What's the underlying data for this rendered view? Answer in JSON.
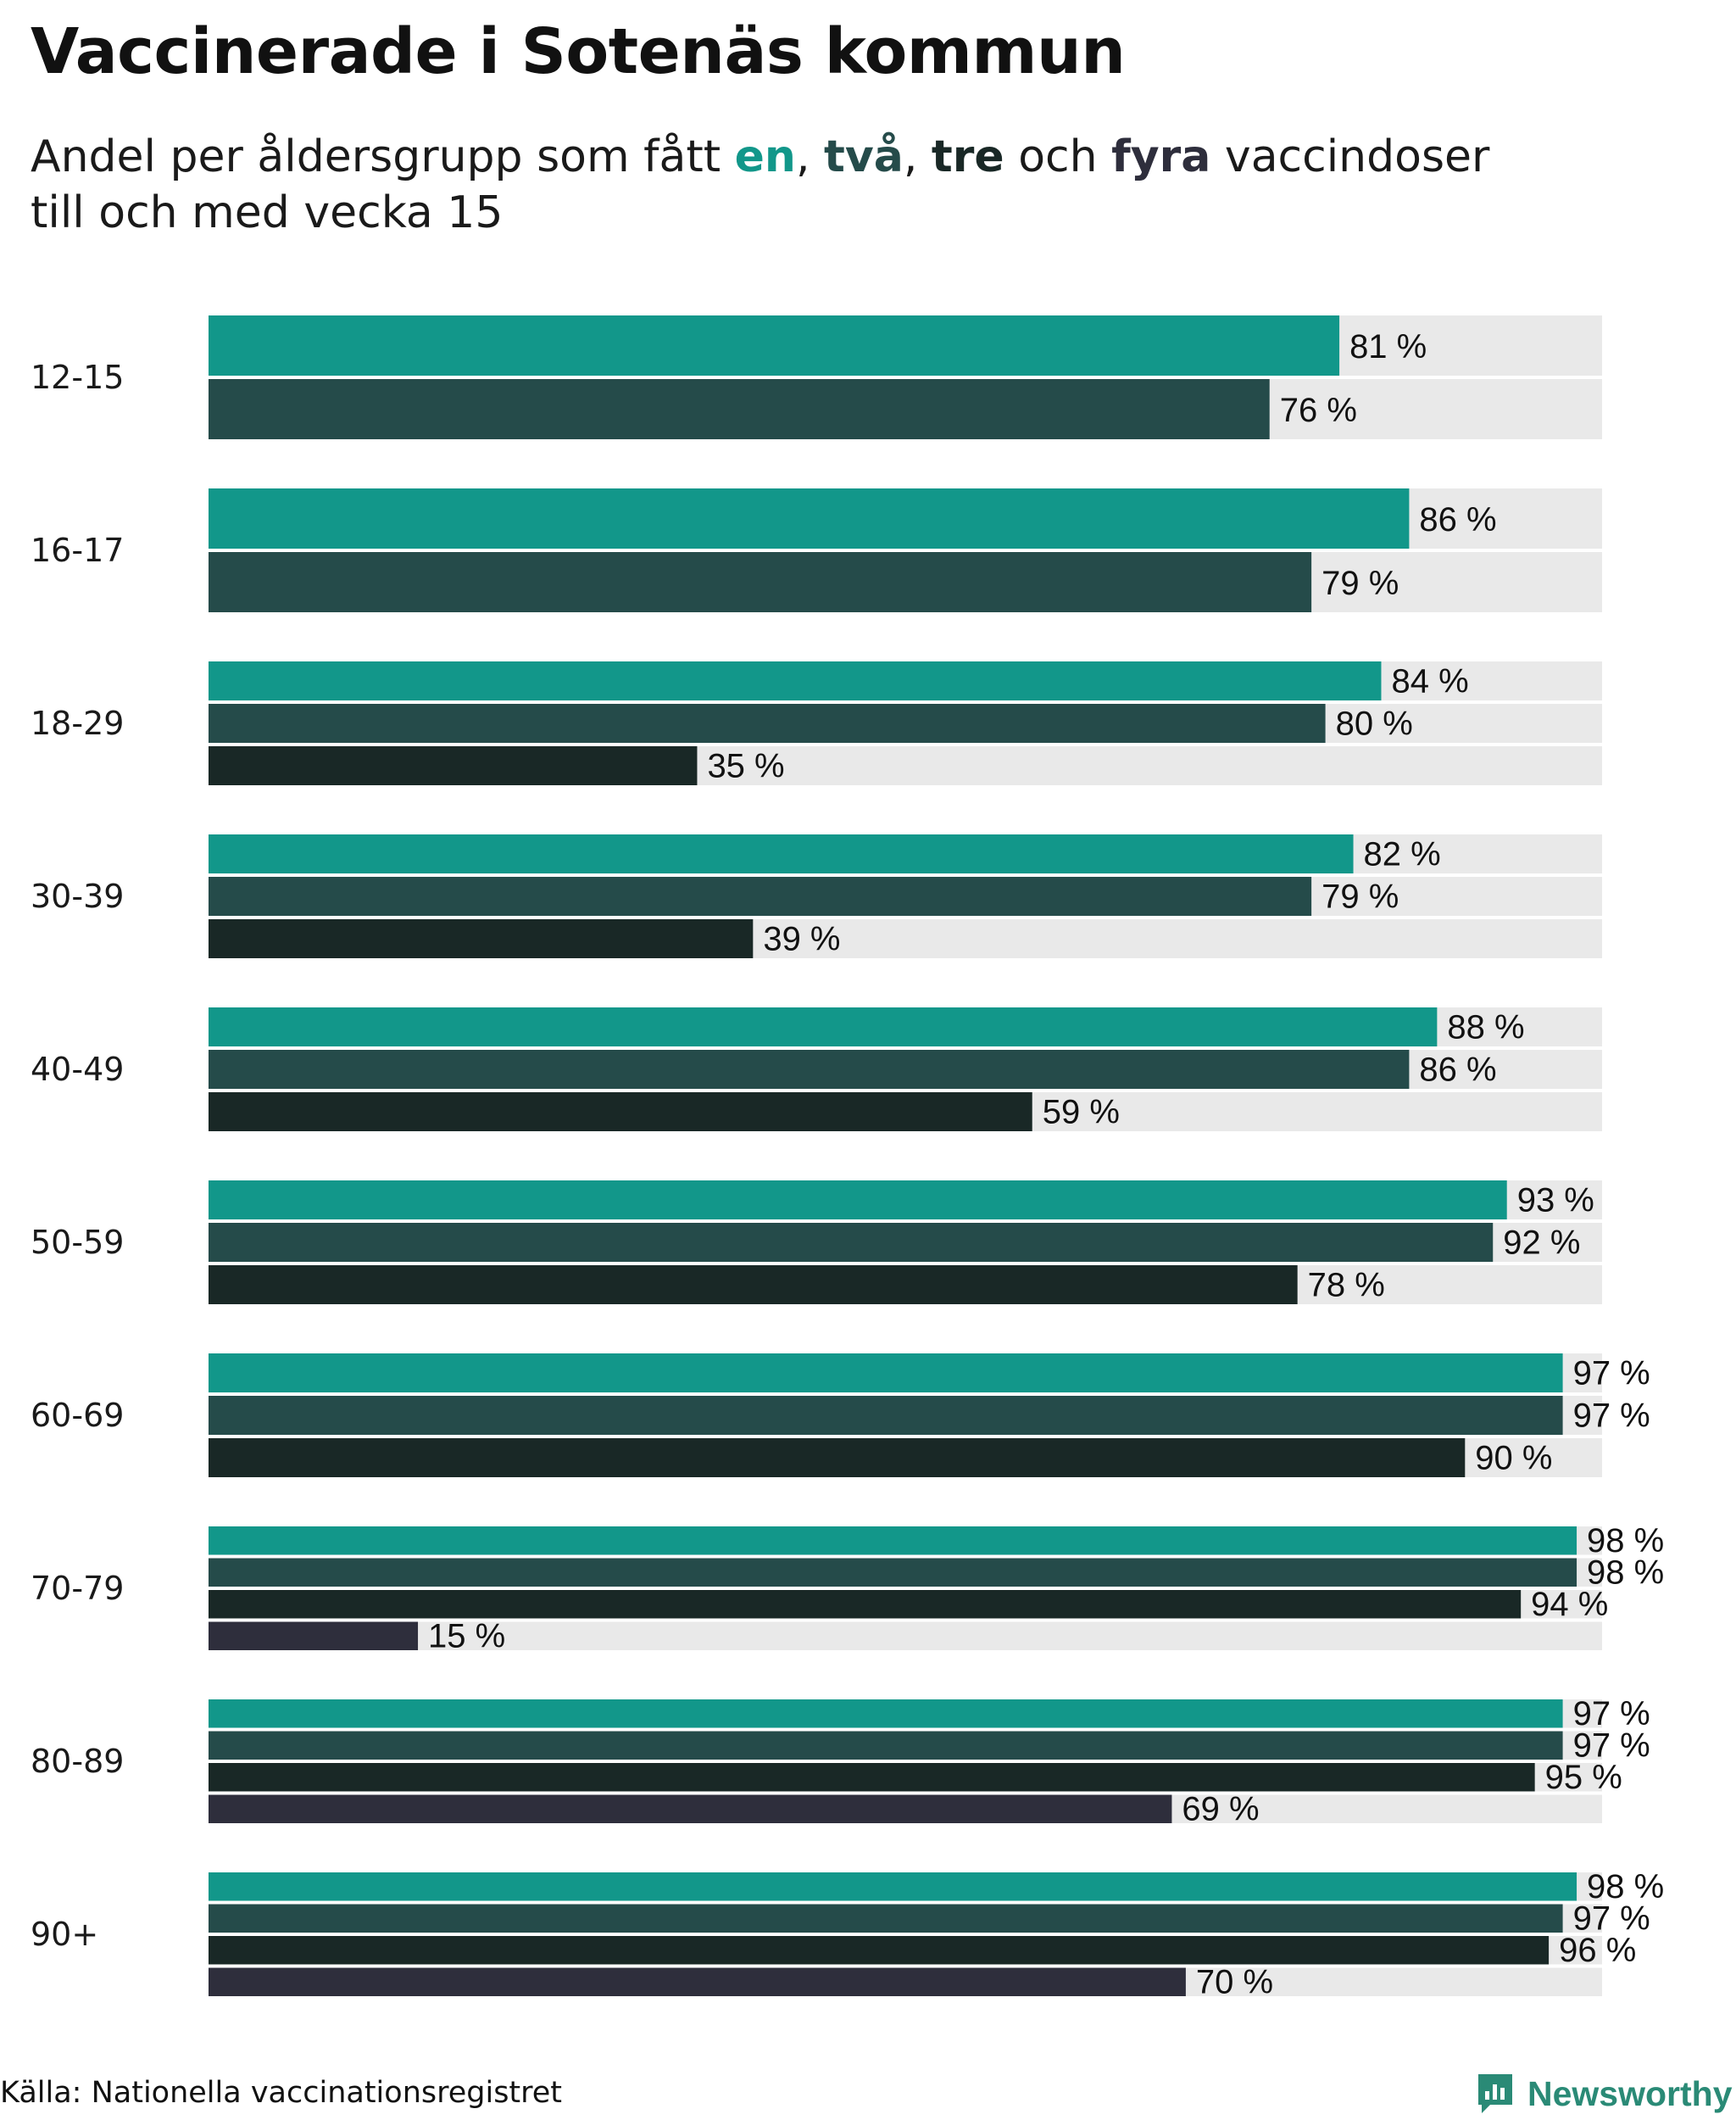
{
  "title": "Vaccinerade i Sotenäs kommun",
  "subtitle": {
    "prefix": "Andel per åldersgrupp som fått ",
    "dose1": "en",
    "sep1": ", ",
    "dose2": "två",
    "sep2": ", ",
    "dose3": "tre",
    "mid": " och ",
    "dose4": "fyra",
    "suffix": " vaccindoser",
    "line2": "till och med vecka 15"
  },
  "colors": {
    "dose1": "#12978a",
    "dose2": "#254b4a",
    "dose3": "#192826",
    "dose4": "#2e2e3c",
    "track": "#e9e9e9",
    "brand": "#2a8a76"
  },
  "chart_data": {
    "type": "bar",
    "orientation": "horizontal",
    "title": "Vaccinerade i Sotenäs kommun",
    "xlim": [
      0,
      100
    ],
    "unit": "%",
    "categories": [
      "12-15",
      "16-17",
      "18-29",
      "30-39",
      "40-49",
      "50-59",
      "60-69",
      "70-79",
      "80-89",
      "90+"
    ],
    "series": [
      {
        "name": "en",
        "values": [
          81,
          86,
          84,
          82,
          88,
          93,
          97,
          98,
          97,
          98
        ]
      },
      {
        "name": "två",
        "values": [
          76,
          79,
          80,
          79,
          86,
          92,
          97,
          98,
          97,
          97
        ]
      },
      {
        "name": "tre",
        "values": [
          null,
          null,
          35,
          39,
          59,
          78,
          90,
          94,
          95,
          96
        ]
      },
      {
        "name": "fyra",
        "values": [
          null,
          null,
          null,
          null,
          null,
          null,
          null,
          15,
          69,
          70
        ]
      }
    ]
  },
  "footer": {
    "source": "Källa: Nationella vaccinationsregistret",
    "brand": "Newsworthy",
    "brand_icon": "newsworthy-logo-icon"
  }
}
